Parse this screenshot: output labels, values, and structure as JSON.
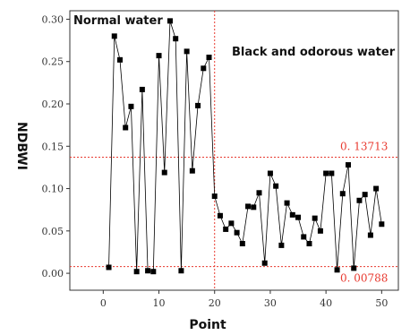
{
  "chart_data": {
    "type": "line",
    "xlabel": "Point",
    "ylabel": "NDBWI",
    "xlim": [
      -6,
      53
    ],
    "ylim": [
      -0.02,
      0.31
    ],
    "xticks": [
      0,
      10,
      20,
      30,
      40,
      50
    ],
    "yticks": [
      0.0,
      0.05,
      0.1,
      0.15,
      0.2,
      0.25,
      0.3
    ],
    "xtick_labels": [
      "0",
      "10",
      "20",
      "30",
      "40",
      "50"
    ],
    "ytick_labels": [
      "0.00",
      "0.05",
      "0.10",
      "0.15",
      "0.20",
      "0.25",
      "0.30"
    ],
    "grid": false,
    "series": [
      {
        "marker": "square",
        "color": "#000000",
        "x": [
          1,
          2,
          3,
          4,
          5,
          6,
          7,
          8,
          9,
          10,
          11,
          12,
          13,
          14,
          15,
          16,
          17,
          18,
          19,
          20,
          21,
          22,
          23,
          24,
          25,
          26,
          27,
          28,
          29,
          30,
          31,
          32,
          33,
          34,
          35,
          36,
          37,
          38,
          39,
          40,
          41,
          42,
          43,
          44,
          45,
          46,
          47,
          48,
          49,
          50
        ],
        "y": [
          0.007,
          0.28,
          0.252,
          0.172,
          0.197,
          0.002,
          0.217,
          0.003,
          0.002,
          0.257,
          0.119,
          0.298,
          0.277,
          0.003,
          0.262,
          0.121,
          0.198,
          0.242,
          0.255,
          0.091,
          0.068,
          0.052,
          0.059,
          0.048,
          0.035,
          0.079,
          0.078,
          0.095,
          0.012,
          0.118,
          0.103,
          0.033,
          0.083,
          0.069,
          0.066,
          0.043,
          0.035,
          0.065,
          0.05,
          0.118,
          0.118,
          0.004,
          0.094,
          0.128,
          0.006,
          0.086,
          0.093,
          0.045,
          0.1,
          0.058
        ]
      }
    ],
    "vline": {
      "x": 20,
      "color": "#e8392f"
    },
    "thresholds": [
      {
        "value": 0.13713,
        "label": "0. 13713",
        "color": "#e8392f"
      },
      {
        "value": 0.00788,
        "label": "0. 00788",
        "color": "#e8392f"
      }
    ],
    "annotations": {
      "left": "Normal water",
      "right": "Black and odorous water"
    }
  }
}
